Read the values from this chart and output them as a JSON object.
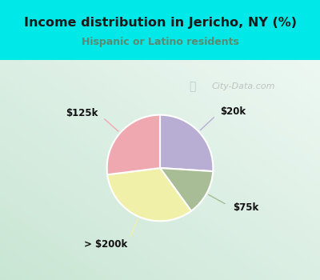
{
  "title": "Income distribution in Jericho, NY (%)",
  "subtitle": "Hispanic or Latino residents",
  "labels": [
    "$20k",
    "$75k",
    "> $200k",
    "$125k"
  ],
  "sizes": [
    26,
    14,
    33,
    27
  ],
  "colors": [
    "#b8aed4",
    "#a8bc96",
    "#f0f0a8",
    "#f0a8b0"
  ],
  "bg_top": "#00e8e8",
  "bg_chart_tl": "#e8f5ef",
  "bg_chart_br": "#c8e8d8",
  "title_color": "#1a1a1a",
  "subtitle_color": "#5a8a72",
  "watermark": "City-Data.com",
  "startangle": 90,
  "wedge_edge_color": "white",
  "wedge_edge_width": 1.5
}
